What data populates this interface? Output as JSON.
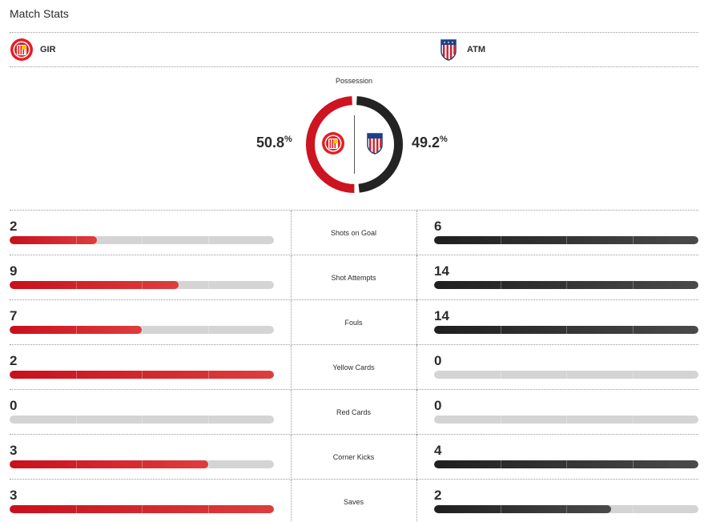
{
  "header": {
    "title": "Match Stats"
  },
  "teams": {
    "home": {
      "abbr": "GIR",
      "color": "#cd1420",
      "logo_icon": "girona-crest-icon"
    },
    "away": {
      "abbr": "ATM",
      "color": "#232323",
      "logo_icon": "atletico-crest-icon"
    }
  },
  "possession": {
    "label": "Possession",
    "home_value": 50.8,
    "away_value": 49.2,
    "home_text": "50.8",
    "away_text": "49.2",
    "unit": "%"
  },
  "stats": [
    {
      "label": "Shots on Goal",
      "home": "2",
      "away": "6",
      "home_fill": 0.33,
      "away_fill": 1.0
    },
    {
      "label": "Shot Attempts",
      "home": "9",
      "away": "14",
      "home_fill": 0.64,
      "away_fill": 1.0
    },
    {
      "label": "Fouls",
      "home": "7",
      "away": "14",
      "home_fill": 0.5,
      "away_fill": 1.0
    },
    {
      "label": "Yellow Cards",
      "home": "2",
      "away": "0",
      "home_fill": 1.0,
      "away_fill": 0
    },
    {
      "label": "Red Cards",
      "home": "0",
      "away": "0",
      "home_fill": 0,
      "away_fill": 0
    },
    {
      "label": "Corner Kicks",
      "home": "3",
      "away": "4",
      "home_fill": 0.75,
      "away_fill": 1.0
    },
    {
      "label": "Saves",
      "home": "3",
      "away": "2",
      "home_fill": 1.0,
      "away_fill": 0.67
    }
  ]
}
